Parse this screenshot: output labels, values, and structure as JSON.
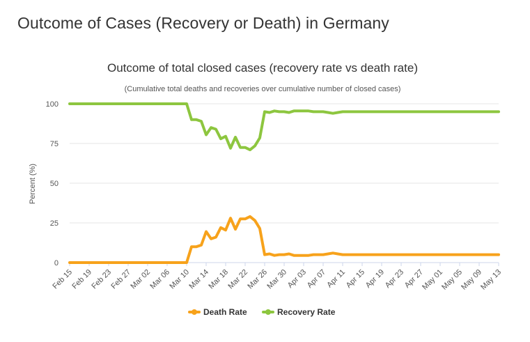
{
  "page": {
    "heading": "Outcome of Cases (Recovery or Death) in Germany"
  },
  "chart_data": {
    "type": "line",
    "title": "Outcome of total closed cases (recovery rate vs death rate)",
    "subtitle": "(Cumulative total deaths and recoveries over cumulative number of closed cases)",
    "xlabel": "",
    "ylabel": "Percent (%)",
    "ylim": [
      0,
      100
    ],
    "yticks": [
      0,
      25,
      50,
      75,
      100
    ],
    "xtick_labels": [
      "Feb 15",
      "Feb 19",
      "Feb 23",
      "Feb 27",
      "Mar 02",
      "Mar 06",
      "Mar 10",
      "Mar 14",
      "Mar 18",
      "Mar 22",
      "Mar 26",
      "Mar 30",
      "Apr 03",
      "Apr 07",
      "Apr 11",
      "Apr 15",
      "Apr 19",
      "Apr 23",
      "Apr 27",
      "May 01",
      "May 05",
      "May 09",
      "May 13"
    ],
    "grid": true,
    "legend_position": "bottom",
    "x": [
      "Feb 15",
      "Feb 16",
      "Feb 17",
      "Feb 18",
      "Feb 19",
      "Feb 20",
      "Feb 21",
      "Feb 22",
      "Feb 23",
      "Feb 24",
      "Feb 25",
      "Feb 26",
      "Feb 27",
      "Feb 28",
      "Feb 29",
      "Mar 01",
      "Mar 02",
      "Mar 03",
      "Mar 04",
      "Mar 05",
      "Mar 06",
      "Mar 07",
      "Mar 08",
      "Mar 09",
      "Mar 10",
      "Mar 11",
      "Mar 12",
      "Mar 13",
      "Mar 14",
      "Mar 15",
      "Mar 16",
      "Mar 17",
      "Mar 18",
      "Mar 19",
      "Mar 20",
      "Mar 21",
      "Mar 22",
      "Mar 23",
      "Mar 24",
      "Mar 25",
      "Mar 26",
      "Mar 27",
      "Mar 28",
      "Mar 29",
      "Mar 30",
      "Mar 31",
      "Apr 01",
      "Apr 02",
      "Apr 03",
      "Apr 04",
      "Apr 05",
      "Apr 06",
      "Apr 07",
      "Apr 08",
      "Apr 09",
      "Apr 10",
      "Apr 11",
      "Apr 12",
      "Apr 13",
      "Apr 14",
      "Apr 15",
      "Apr 16",
      "Apr 17",
      "Apr 18",
      "Apr 19",
      "Apr 20",
      "Apr 21",
      "Apr 22",
      "Apr 23",
      "Apr 24",
      "Apr 25",
      "Apr 26",
      "Apr 27",
      "Apr 28",
      "Apr 29",
      "Apr 30",
      "May 01",
      "May 02",
      "May 03",
      "May 04",
      "May 05",
      "May 06",
      "May 07",
      "May 08",
      "May 09",
      "May 10",
      "May 11",
      "May 12",
      "May 13"
    ],
    "series": [
      {
        "name": "Death Rate",
        "color": "#f7a21b",
        "values": [
          0,
          0,
          0,
          0,
          0,
          0,
          0,
          0,
          0,
          0,
          0,
          0,
          0,
          0,
          0,
          0,
          0,
          0,
          0,
          0,
          0,
          0,
          0,
          0,
          0,
          10,
          10,
          11,
          19.5,
          15,
          16,
          22,
          20.5,
          28,
          21,
          27.5,
          27.5,
          29,
          26.5,
          21.5,
          5,
          5.5,
          4.5,
          5,
          5,
          5.5,
          4.5,
          4.5,
          4.5,
          4.5,
          5,
          5,
          5,
          5.5,
          6,
          5.5,
          5,
          5,
          5,
          5,
          5,
          5,
          5,
          5,
          5,
          5,
          5,
          5,
          5,
          5,
          5,
          5,
          5,
          5,
          5,
          5,
          5,
          5,
          5,
          5,
          5,
          5,
          5,
          5,
          5,
          5,
          5,
          5,
          5
        ]
      },
      {
        "name": "Recovery Rate",
        "color": "#8dc63f",
        "values": [
          100,
          100,
          100,
          100,
          100,
          100,
          100,
          100,
          100,
          100,
          100,
          100,
          100,
          100,
          100,
          100,
          100,
          100,
          100,
          100,
          100,
          100,
          100,
          100,
          100,
          90,
          90,
          89,
          80.5,
          85,
          84,
          78,
          79.5,
          72,
          79,
          72.5,
          72.5,
          71,
          73.5,
          78.5,
          95,
          94.5,
          95.5,
          95,
          95,
          94.5,
          95.5,
          95.5,
          95.5,
          95.5,
          95,
          95,
          95,
          94.5,
          94,
          94.5,
          95,
          95,
          95,
          95,
          95,
          95,
          95,
          95,
          95,
          95,
          95,
          95,
          95,
          95,
          95,
          95,
          95,
          95,
          95,
          95,
          95,
          95,
          95,
          95,
          95,
          95,
          95,
          95,
          95,
          95,
          95,
          95,
          95
        ]
      }
    ]
  }
}
